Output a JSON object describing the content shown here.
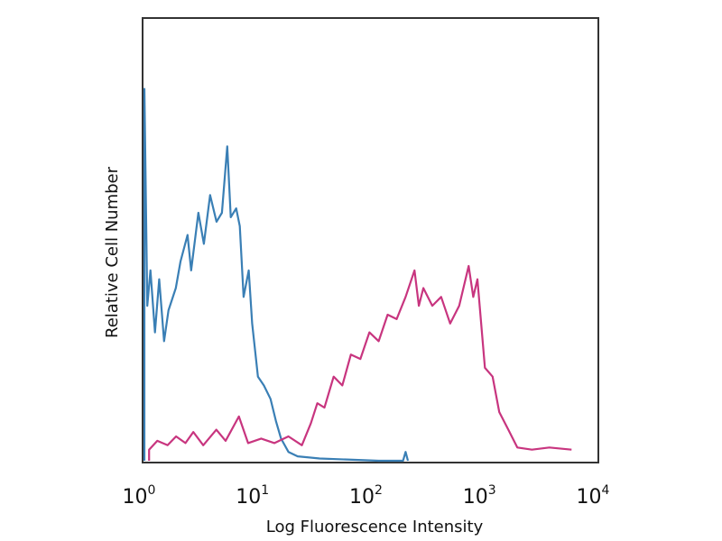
{
  "chart_data": {
    "type": "line",
    "title": "",
    "xlabel": "Log Fluorescence Intensity",
    "ylabel": "Relative Cell Number",
    "x_scale": "log",
    "xlim": [
      1,
      10000
    ],
    "ylim": [
      0,
      100
    ],
    "grid": false,
    "legend": "none",
    "x_ticks": [
      {
        "value": 1,
        "base": "10",
        "exp": "0"
      },
      {
        "value": 10,
        "base": "10",
        "exp": "1"
      },
      {
        "value": 100,
        "base": "10",
        "exp": "2"
      },
      {
        "value": 1000,
        "base": "10",
        "exp": "3"
      },
      {
        "value": 10000,
        "base": "10",
        "exp": "4"
      }
    ],
    "series": [
      {
        "color": "#3a7fb5",
        "x": [
          1,
          1.06,
          1.13,
          1.24,
          1.35,
          1.49,
          1.63,
          1.89,
          2.08,
          2.4,
          2.58,
          2.99,
          3.34,
          3.79,
          4.32,
          4.82,
          5.37,
          5.77,
          6.44,
          6.93,
          7.48,
          8.3,
          8.9,
          10,
          11.3,
          12.9,
          14.4,
          16,
          18.6,
          22.4,
          35,
          116,
          190,
          200,
          210
        ],
        "y": [
          84,
          35,
          43,
          29,
          41,
          27,
          34,
          39,
          45,
          51,
          43,
          56,
          49,
          60,
          54,
          56,
          71,
          55,
          57,
          53,
          37,
          43,
          31,
          19,
          17,
          14,
          9,
          5,
          2,
          1,
          0.5,
          0,
          0,
          2,
          0
        ]
      },
      {
        "color": "#c8357f",
        "x": [
          1.1,
          1.3,
          1.6,
          1.9,
          2.3,
          2.7,
          3.3,
          4.3,
          5.2,
          6.8,
          8.2,
          10.7,
          14,
          18.6,
          24.4,
          29.3,
          33.4,
          38.6,
          46.5,
          55.5,
          66,
          80,
          96,
          116,
          139,
          167,
          200,
          240,
          262,
          287,
          344,
          412,
          495,
          594,
          720,
          790,
          860,
          1000,
          1170,
          1340,
          1610,
          1930,
          2600,
          3700,
          5800
        ],
        "y": [
          2.5,
          4.5,
          3.5,
          5.5,
          4,
          6.5,
          3.5,
          7,
          4.5,
          10,
          4,
          5,
          4,
          5.5,
          3.5,
          8.5,
          13,
          12,
          19,
          17,
          24,
          23,
          29,
          27,
          33,
          32,
          37,
          43,
          35,
          39,
          35,
          37,
          31,
          35,
          44,
          37,
          41,
          21,
          19,
          11,
          7,
          3,
          2.5,
          3,
          2.5
        ]
      }
    ]
  }
}
